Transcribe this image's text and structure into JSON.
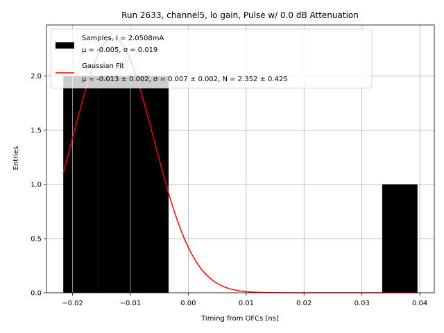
{
  "chart_data": {
    "type": "bar",
    "title": "Run 2633, channel5, lo gain, Pulse w/ 0.0 dB Attenuation",
    "xlabel": "Timing from OFCs [ns]",
    "ylabel": "Entries",
    "xlim": [
      -0.0245,
      0.0425
    ],
    "ylim": [
      0,
      2.47
    ],
    "xticks": [
      -0.02,
      -0.01,
      0.0,
      0.01,
      0.02,
      0.03,
      0.04
    ],
    "xtick_labels": [
      "−0.02",
      "−0.01",
      "0.00",
      "0.01",
      "0.02",
      "0.03",
      "0.04"
    ],
    "yticks": [
      0.0,
      0.5,
      1.0,
      1.5,
      2.0
    ],
    "ytick_labels": [
      "0.0",
      "0.5",
      "1.0",
      "1.5",
      "2.0"
    ],
    "grid": true,
    "legend_position": "top-left",
    "histogram": {
      "name": "Samples, I = 2.0508mA",
      "stats_label": "μ = -0.005, σ = 0.019",
      "color": "#000000",
      "bins": [
        {
          "x0": -0.0216,
          "x1": -0.0155,
          "count": 2
        },
        {
          "x0": -0.0155,
          "x1": -0.0094,
          "count": 2
        },
        {
          "x0": -0.0094,
          "x1": -0.0034,
          "count": 2
        },
        {
          "x0": 0.0335,
          "x1": 0.0396,
          "count": 1
        }
      ]
    },
    "fit": {
      "name": "Gaussian Fit",
      "params_label": "μ = -0.013 ± 0.002, σ = 0.007 ± 0.002, N = 2.352 ± 0.425",
      "color": "#ff0000",
      "mu": -0.013,
      "sigma": 0.007,
      "amplitude": 2.352,
      "x_range": [
        -0.0216,
        0.0396
      ]
    }
  }
}
